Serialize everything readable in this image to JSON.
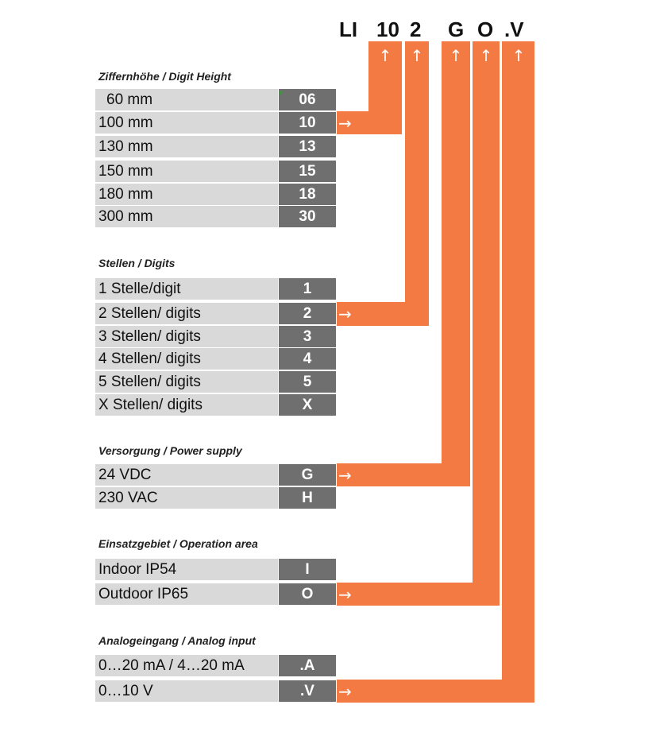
{
  "code": [
    "LI",
    "10",
    "2",
    "G",
    "O",
    ".V"
  ],
  "arrow_up": "↑",
  "arrow_right": "→",
  "sections": [
    {
      "title": "Ziffernhöhe / Digit Height",
      "rows": [
        {
          "label": "  60 mm",
          "code": "06"
        },
        {
          "label": "100 mm",
          "code": "10"
        },
        {
          "label": "130 mm",
          "code": "13"
        },
        {
          "label": "150 mm",
          "code": "15"
        },
        {
          "label": "180 mm",
          "code": "18"
        },
        {
          "label": "300 mm",
          "code": "30"
        }
      ]
    },
    {
      "title": "Stellen / Digits",
      "rows": [
        {
          "label": "1 Stelle/digit",
          "code": "1"
        },
        {
          "label": "2 Stellen/ digits",
          "code": "2"
        },
        {
          "label": "3 Stellen/ digits",
          "code": "3"
        },
        {
          "label": "4 Stellen/ digits",
          "code": "4"
        },
        {
          "label": "5 Stellen/ digits",
          "code": "5"
        },
        {
          "label": "X Stellen/ digits",
          "code": "X"
        }
      ]
    },
    {
      "title": "Versorgung / Power supply",
      "rows": [
        {
          "label": "24 VDC",
          "code": "G"
        },
        {
          "label": "230 VAC",
          "code": "H"
        }
      ]
    },
    {
      "title": "Einsatzgebiet / Operation area",
      "rows": [
        {
          "label": "Indoor IP54",
          "code": "I"
        },
        {
          "label": "Outdoor IP65",
          "code": "O"
        }
      ]
    },
    {
      "title": "Analogeingang / Analog input",
      "rows": [
        {
          "label": "0…20 mA / 4…20 mA",
          "code": ".A"
        },
        {
          "label": "0…10 V",
          "code": ".V"
        }
      ]
    }
  ]
}
